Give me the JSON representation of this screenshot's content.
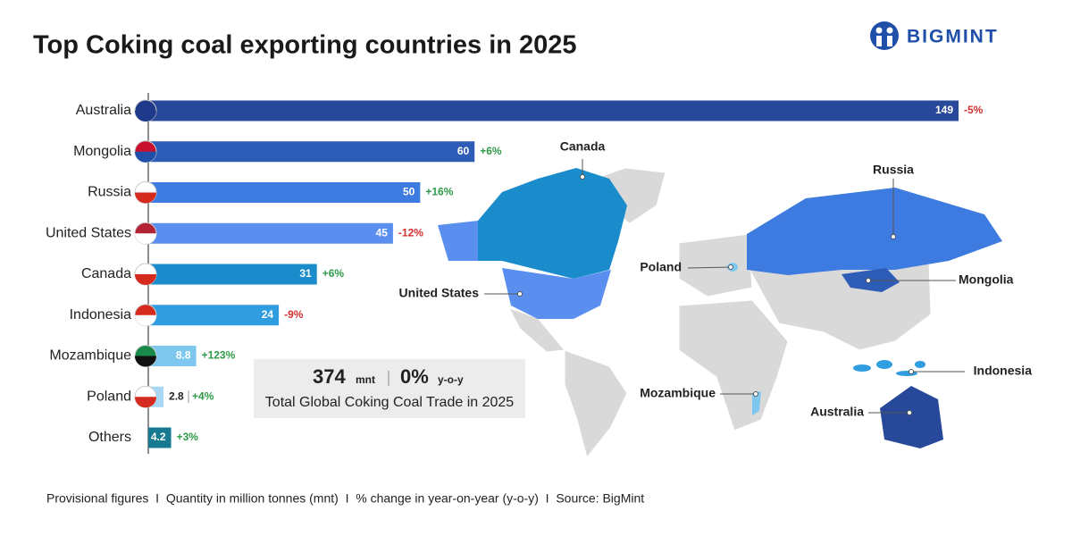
{
  "brand": "BIGMINT",
  "chart_data": {
    "type": "bar",
    "orientation": "horizontal",
    "title": "Top Coking coal exporting countries in 2025",
    "categories": [
      "Australia",
      "Mongolia",
      "Russia",
      "United States",
      "Canada",
      "Indonesia",
      "Mozambique",
      "Poland",
      "Others"
    ],
    "values": [
      149,
      60,
      50,
      45,
      31,
      24,
      8.8,
      2.8,
      4.2
    ],
    "change_labels": [
      "-5%",
      "+6%",
      "+16%",
      "-12%",
      "+6%",
      "-9%",
      "+123%",
      "+4%",
      "+3%"
    ],
    "colors": [
      "#28499a",
      "#2d5cb6",
      "#3d7be0",
      "#5a8ff0",
      "#1a8ccc",
      "#2f9de0",
      "#7ec8f0",
      "#a8d8f5",
      "#187a90"
    ]
  },
  "summary": {
    "total": 374,
    "total_unit": "mnt",
    "change": "0%",
    "change_unit": "y-o-y",
    "caption": "Total Global Coking Coal Trade in 2025"
  },
  "map_labels": [
    "Canada",
    "Russia",
    "Poland",
    "United States",
    "Mongolia",
    "Indonesia",
    "Mozambique",
    "Australia"
  ],
  "footnote": "Provisional figures  I  Quantity in million tonnes (mnt)  I  % change in year-on-year (y-o-y)  I  Source: BigMint"
}
